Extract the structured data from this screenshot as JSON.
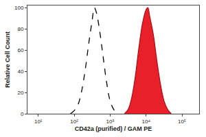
{
  "chart_data": {
    "type": "line",
    "x_label": "CD42a (purified) / GAM PE",
    "y_label": "Relative Cell Count",
    "log": "x",
    "grid": false,
    "xlim": [
      5,
      300000
    ],
    "xticks": [
      {
        "value": 10,
        "label": "10¹"
      },
      {
        "value": 100,
        "label": "10²"
      },
      {
        "value": 1000,
        "label": "10³"
      },
      {
        "value": 10000,
        "label": "10⁴"
      },
      {
        "value": 100000,
        "label": "10⁵"
      }
    ],
    "ylim": [
      0,
      102
    ],
    "yticks": [
      0,
      20,
      40,
      60,
      80,
      100
    ],
    "series": [
      {
        "type": "line",
        "line_style": "dashed",
        "color": "#000000",
        "x": [
          79,
          100,
          126,
          158,
          200,
          251,
          316,
          363,
          417,
          501,
          631,
          794,
          1000,
          1259,
          1585
        ],
        "values": [
          0,
          3,
          8,
          20,
          40,
          65,
          88,
          100,
          95,
          80,
          55,
          30,
          12,
          4,
          0
        ]
      },
      {
        "type": "area",
        "line_style": "solid",
        "color": "#e8202a",
        "x": [
          2512,
          3162,
          3981,
          5012,
          6310,
          7943,
          10000,
          11220,
          12589,
          15849,
          19953,
          25119,
          31623,
          39811,
          50119
        ],
        "values": [
          0,
          4,
          15,
          35,
          62,
          85,
          98,
          100,
          92,
          75,
          50,
          28,
          12,
          4,
          0
        ]
      }
    ]
  }
}
